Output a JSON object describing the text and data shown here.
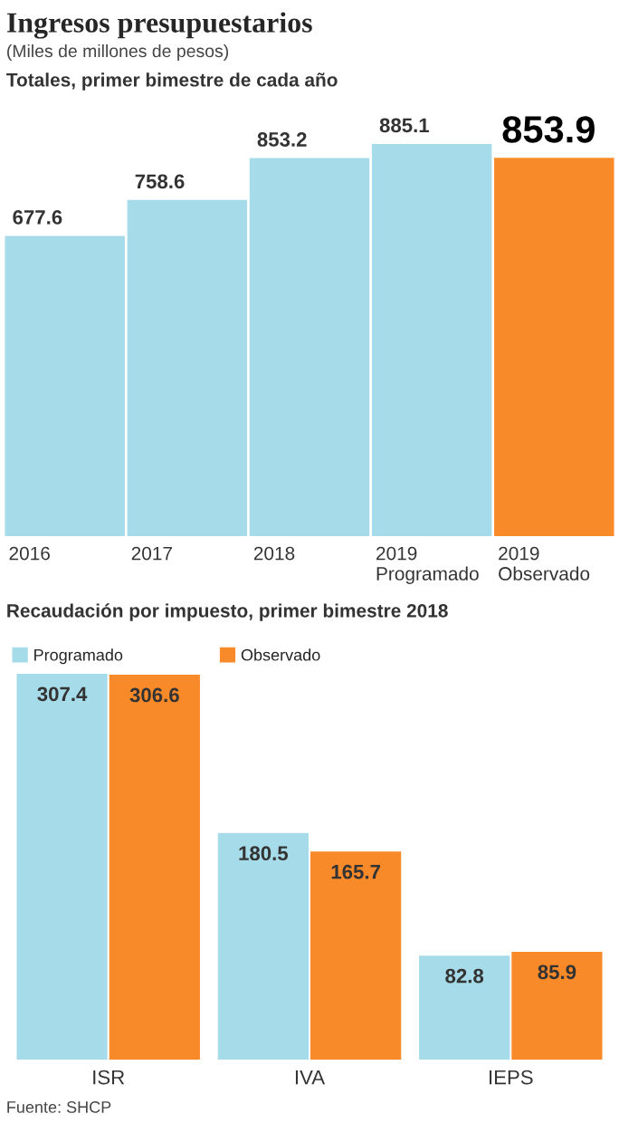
{
  "chart_data": [
    {
      "type": "bar",
      "title": "Ingresos presupuestarios",
      "subtitle": "(Miles de millones de pesos)",
      "annotations": [
        "Totales, primer bimestre de cada año"
      ],
      "categories": [
        "2016",
        "2017",
        "2018",
        "2019\nProgramado",
        "2019\nObservado"
      ],
      "values": [
        677.6,
        758.6,
        853.2,
        885.1,
        853.9
      ],
      "colors": [
        "#a6dbe9",
        "#a6dbe9",
        "#a6dbe9",
        "#a6dbe9",
        "#f98a2a"
      ],
      "data_labels": true,
      "grid": false
    },
    {
      "type": "bar",
      "title": "Recaudación por impuesto, primer bimestre 2018",
      "annotations": [
        "Fuente: SHCP"
      ],
      "categories": [
        "ISR",
        "IVA",
        "IEPS"
      ],
      "series": [
        {
          "name": "Programado",
          "color": "#a6dbe9",
          "values": [
            307.4,
            180.5,
            82.8
          ]
        },
        {
          "name": "Observado",
          "color": "#f98a2a",
          "values": [
            306.6,
            165.7,
            85.9
          ]
        }
      ],
      "data_labels": true,
      "grid": false,
      "legend": "top left"
    }
  ]
}
